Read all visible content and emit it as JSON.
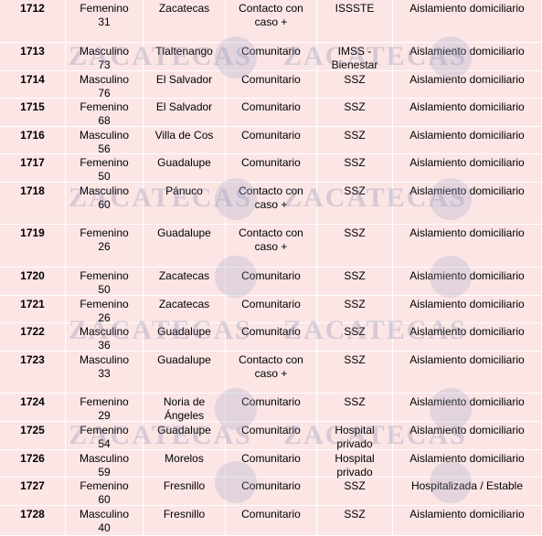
{
  "watermark": "ZACATECAS",
  "table": {
    "rows": [
      [
        "1712",
        "Femenino",
        "31",
        "Zacatecas",
        "Contacto con caso +",
        "ISSSTE",
        "Aislamiento domiciliario"
      ],
      [
        "1713",
        "Masculino",
        "73",
        "Tlaltenango",
        "Comunitario",
        "IMSS - Bienestar",
        "Aislamiento domiciliario"
      ],
      [
        "1714",
        "Masculino",
        "76",
        "El Salvador",
        "Comunitario",
        "SSZ",
        "Aislamiento domiciliario"
      ],
      [
        "1715",
        "Femenino",
        "68",
        "El Salvador",
        "Comunitario",
        "SSZ",
        "Aislamiento domiciliario"
      ],
      [
        "1716",
        "Masculino",
        "56",
        "Villa de Cos",
        "Comunitario",
        "SSZ",
        "Aislamiento domiciliario"
      ],
      [
        "1717",
        "Femenino",
        "50",
        "Guadalupe",
        "Comunitario",
        "SSZ",
        "Aislamiento domiciliario"
      ],
      [
        "1718",
        "Masculino",
        "60",
        "Pánuco",
        "Contacto con caso +",
        "SSZ",
        "Aislamiento domiciliario"
      ],
      [
        "1719",
        "Femenino",
        "26",
        "Guadalupe",
        "Contacto con caso +",
        "SSZ",
        "Aislamiento domiciliario"
      ],
      [
        "1720",
        "Femenino",
        "50",
        "Zacatecas",
        "Comunitario",
        "SSZ",
        "Aislamiento domiciliario"
      ],
      [
        "1721",
        "Femenino",
        "26",
        "Zacatecas",
        "Comunitario",
        "SSZ",
        "Aislamiento domiciliario"
      ],
      [
        "1722",
        "Masculino",
        "36",
        "Guadalupe",
        "Comunitario",
        "SSZ",
        "Aislamiento domiciliario"
      ],
      [
        "1723",
        "Masculino",
        "33",
        "Guadalupe",
        "Contacto con caso +",
        "SSZ",
        "Aislamiento domiciliario"
      ],
      [
        "1724",
        "Femenino",
        "29",
        "Noria de Ángeles",
        "Comunitario",
        "SSZ",
        "Aislamiento domiciliario"
      ],
      [
        "1725",
        "Femenino",
        "54",
        "Guadalupe",
        "Comunitario",
        "Hospital privado",
        "Aislamiento domiciliario"
      ],
      [
        "1726",
        "Masculino",
        "59",
        "Morelos",
        "Comunitario",
        "Hospital privado",
        "Aislamiento domiciliario"
      ],
      [
        "1727",
        "Femenino",
        "60",
        "Fresnillo",
        "Comunitario",
        "SSZ",
        "Hospitalizada / Estable"
      ],
      [
        "1728",
        "Masculino",
        "40",
        "Fresnillo",
        "Comunitario",
        "SSZ",
        "Aislamiento domiciliario"
      ]
    ]
  }
}
